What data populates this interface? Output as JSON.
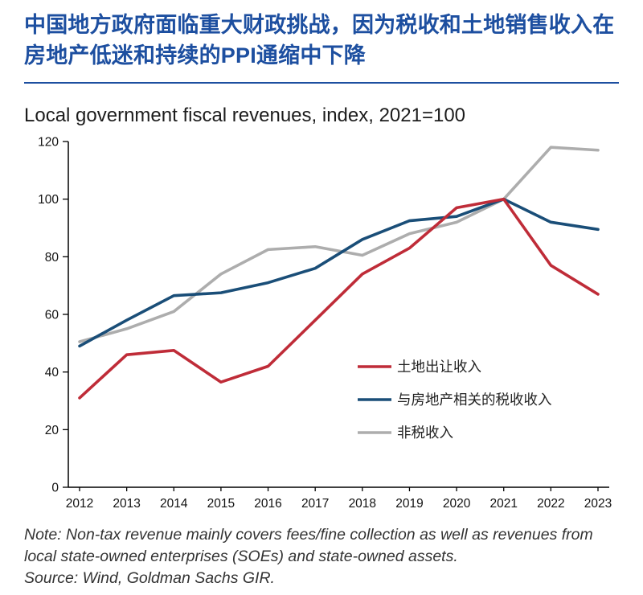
{
  "header": {
    "title": "中国地方政府面临重大财政挑战，因为税收和土地销售收入在房地产低迷和持续的PPI通缩中下降",
    "accent_color": "#1d4fa0"
  },
  "chart_data": {
    "type": "line",
    "title": "Local government fiscal revenues, index, 2021=100",
    "x": [
      2012,
      2013,
      2014,
      2015,
      2016,
      2017,
      2018,
      2019,
      2020,
      2021,
      2022,
      2023
    ],
    "series": [
      {
        "name": "土地出让收入",
        "color": "#bf2c38",
        "values": [
          31,
          46,
          47.5,
          36.5,
          42,
          58,
          74,
          83,
          97,
          100,
          77,
          67
        ]
      },
      {
        "name": "与房地产相关的税收收入",
        "color": "#1a4e78",
        "values": [
          49,
          58,
          66.5,
          67.5,
          71,
          76,
          86,
          92.5,
          94,
          100,
          92,
          89.5
        ]
      },
      {
        "name": "非税收入",
        "color": "#adadad",
        "values": [
          50.5,
          55,
          61,
          74,
          82.5,
          83.5,
          80.5,
          88,
          92,
          100,
          118,
          117
        ]
      }
    ],
    "ylim": [
      0,
      120
    ],
    "yticks": [
      0,
      20,
      40,
      60,
      80,
      100,
      120
    ],
    "grid": false,
    "legend_position": "inside-right"
  },
  "footer": {
    "note": "Note: Non-tax revenue mainly covers fees/fine collection as well as revenues from local state-owned enterprises (SOEs) and state-owned assets.",
    "source": "Source: Wind, Goldman Sachs GIR."
  }
}
